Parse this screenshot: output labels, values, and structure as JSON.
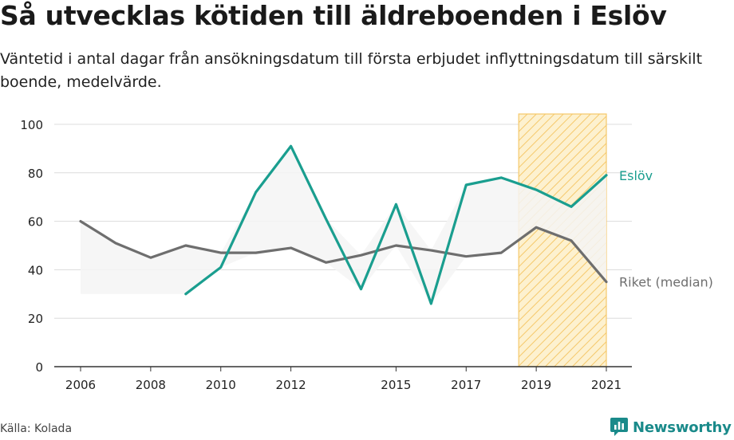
{
  "header": {
    "title": "Så utvecklas kötiden till äldreboenden i Eslöv",
    "subtitle": "Väntetid i antal dagar från ansökningsdatum till första erbjudet inflyttningsdatum till särskilt boende, medelvärde."
  },
  "footer": {
    "source": "Källa: Kolada",
    "brand": "Newsworthy",
    "brand_icon": "newsworthy-logo-icon"
  },
  "colors": {
    "eslov": "#1a9e8f",
    "riket": "#6e6e6e",
    "area": "#f4f4f4",
    "highlight_fill": "#fdf1cf",
    "highlight_hatch": "#f5c86a",
    "grid": "#dcdcdc",
    "axis": "#333333",
    "brand": "#1a8a8a"
  },
  "chart_data": {
    "type": "line",
    "x_ticks": [
      2006,
      2008,
      2010,
      2012,
      2015,
      2017,
      2019,
      2021
    ],
    "y_ticks": [
      0,
      20,
      40,
      60,
      80,
      100
    ],
    "xlim": [
      2006,
      2021
    ],
    "ylim": [
      0,
      100
    ],
    "grid": true,
    "highlight_range": [
      2018.5,
      2021
    ],
    "series": [
      {
        "name": "Eslöv",
        "color": "#1a9e8f",
        "x": [
          2009,
          2010,
          2011,
          2012,
          2013,
          2014,
          2015,
          2016,
          2017,
          2018,
          2019,
          2020,
          2021
        ],
        "values": [
          30,
          41,
          72,
          91,
          61,
          32,
          67,
          26,
          75,
          78,
          73,
          66,
          79
        ]
      },
      {
        "name": "Riket (median)",
        "color": "#6e6e6e",
        "x": [
          2006,
          2007,
          2008,
          2009,
          2010,
          2011,
          2012,
          2013,
          2014,
          2015,
          2016,
          2017,
          2018,
          2019,
          2020,
          2021
        ],
        "values": [
          60,
          51,
          45,
          50,
          47,
          47,
          49,
          43,
          46,
          50,
          48,
          45.5,
          47,
          57.5,
          52,
          35
        ]
      }
    ]
  }
}
